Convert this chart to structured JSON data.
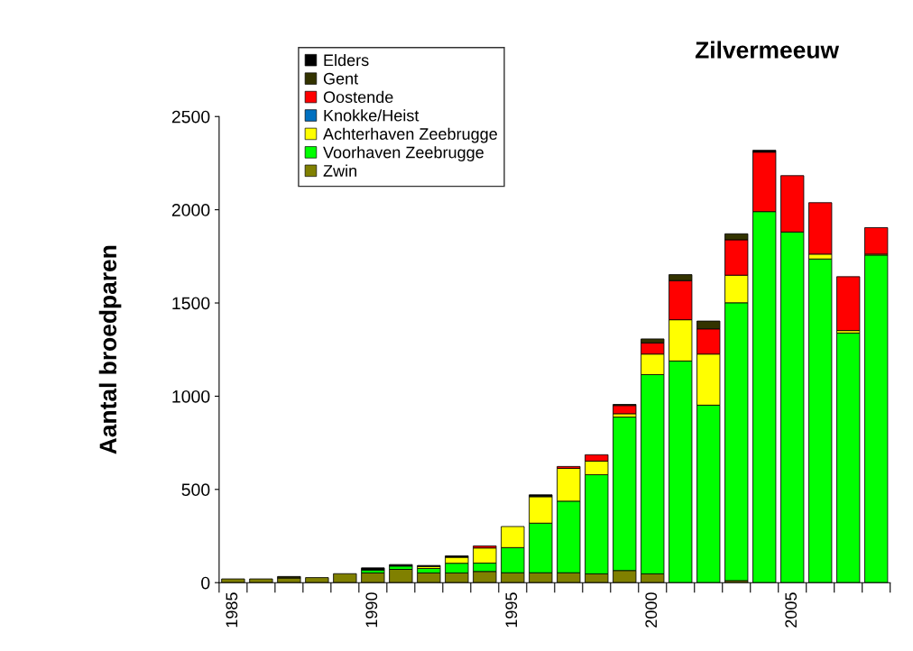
{
  "chart_data": {
    "type": "bar",
    "stacked": true,
    "title": "Zilvermeeuw",
    "ylabel": "Aantal broedparen",
    "categories": [
      "1985",
      null,
      null,
      null,
      null,
      "1990",
      null,
      null,
      null,
      null,
      "1995",
      null,
      null,
      null,
      null,
      "2000",
      null,
      null,
      null,
      null,
      "2005",
      null,
      null,
      null
    ],
    "ylim": [
      0,
      2500
    ],
    "yticks": [
      0,
      500,
      1000,
      1500,
      2000,
      2500
    ],
    "grid": false,
    "legend": "top left",
    "series": [
      {
        "name": "Zwin",
        "color": "#808000",
        "values": [
          20,
          20,
          25,
          27,
          48,
          52,
          71,
          52,
          52,
          60,
          53,
          53,
          53,
          47,
          65,
          47,
          0,
          0,
          11,
          0,
          0,
          0,
          0,
          0
        ]
      },
      {
        "name": "Voorhaven Zeebrugge",
        "color": "#00ff00",
        "values": [
          0,
          0,
          0,
          0,
          0,
          16,
          18,
          24,
          52,
          45,
          135,
          266,
          384,
          532,
          823,
          1069,
          1189,
          952,
          1490,
          1990,
          1881,
          1736,
          1339,
          1757
        ]
      },
      {
        "name": "Achterhaven Zeebrugge",
        "color": "#ffff00",
        "values": [
          0,
          0,
          0,
          0,
          0,
          0,
          0,
          11,
          32,
          81,
          113,
          142,
          176,
          73,
          18,
          110,
          221,
          274,
          148,
          0,
          0,
          26,
          13,
          5
        ]
      },
      {
        "name": "Knokke/Heist",
        "color": "#0070c0",
        "values": [
          0,
          0,
          0,
          0,
          0,
          0,
          0,
          0,
          0,
          0,
          0,
          0,
          0,
          0,
          0,
          0,
          0,
          0,
          0,
          0,
          0,
          0,
          0,
          0
        ]
      },
      {
        "name": "Oostende",
        "color": "#ff0000",
        "values": [
          0,
          0,
          0,
          0,
          0,
          0,
          0,
          0,
          0,
          11,
          0,
          0,
          10,
          34,
          44,
          60,
          210,
          135,
          190,
          319,
          302,
          276,
          289,
          142
        ]
      },
      {
        "name": "Gent",
        "color": "#333300",
        "values": [
          0,
          0,
          8,
          0,
          0,
          0,
          0,
          0,
          0,
          0,
          0,
          0,
          0,
          0,
          6,
          21,
          32,
          42,
          32,
          0,
          0,
          0,
          0,
          0
        ]
      },
      {
        "name": "Elders",
        "color": "#000000",
        "values": [
          0,
          0,
          0,
          0,
          0,
          11,
          8,
          5,
          8,
          0,
          0,
          10,
          0,
          0,
          0,
          0,
          0,
          0,
          0,
          10,
          0,
          0,
          0,
          0
        ]
      }
    ]
  }
}
